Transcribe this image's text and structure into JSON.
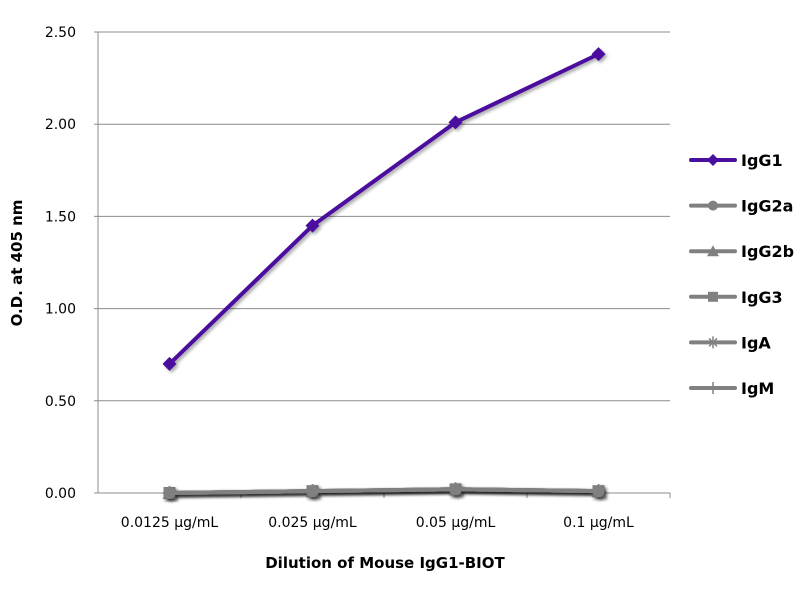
{
  "chart_data": {
    "type": "line",
    "title": "",
    "xlabel": "Dilution of Mouse IgG1-BIOT",
    "ylabel": "O.D. at 405 nm",
    "categories": [
      "0.0125 µg/mL",
      "0.025 µg/mL",
      "0.05 µg/mL",
      "0.1 µg/mL"
    ],
    "ylim": [
      0,
      2.5
    ],
    "yticks": [
      "0.00",
      "0.50",
      "1.00",
      "1.50",
      "2.00",
      "2.50"
    ],
    "grid": true,
    "legend_position": "right",
    "series": [
      {
        "name": "IgG1",
        "marker": "diamond",
        "color": "#4b0f9e",
        "values": [
          0.7,
          1.45,
          2.01,
          2.38
        ]
      },
      {
        "name": "IgG2a",
        "marker": "circle",
        "color": "#808080",
        "values": [
          0.0,
          0.01,
          0.02,
          0.01
        ]
      },
      {
        "name": "IgG2b",
        "marker": "triangle",
        "color": "#808080",
        "values": [
          0.0,
          0.01,
          0.02,
          0.01
        ]
      },
      {
        "name": "IgG3",
        "marker": "square",
        "color": "#808080",
        "values": [
          0.0,
          0.01,
          0.02,
          0.01
        ]
      },
      {
        "name": "IgA",
        "marker": "asterisk",
        "color": "#808080",
        "values": [
          0.0,
          0.01,
          0.02,
          0.01
        ]
      },
      {
        "name": "IgM",
        "marker": "plus",
        "color": "#808080",
        "values": [
          0.0,
          0.01,
          0.02,
          0.01
        ]
      }
    ]
  }
}
